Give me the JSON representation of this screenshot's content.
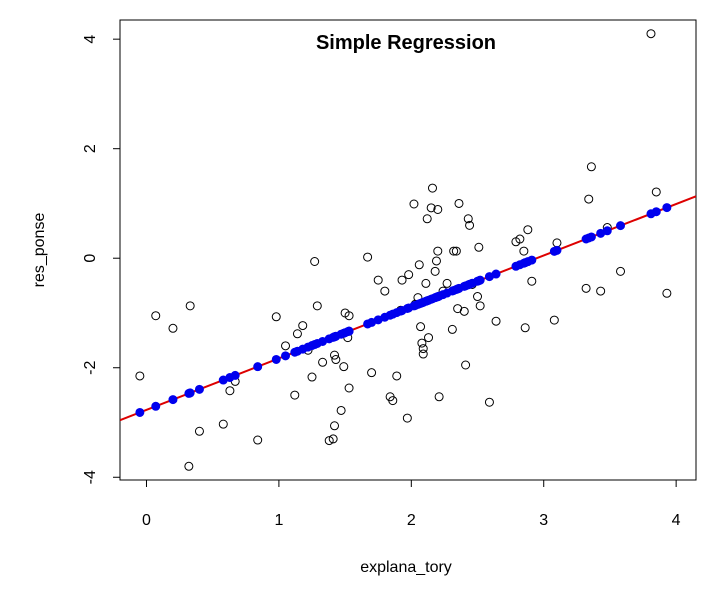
{
  "chart_data": {
    "type": "scatter",
    "title": "Simple Regression",
    "xlabel": "explana_tory",
    "ylabel": "res_ponse",
    "xlim": [
      -0.2,
      4.15
    ],
    "ylim": [
      -4.05,
      4.35
    ],
    "xticks": [
      "0",
      "1",
      "2",
      "3",
      "4"
    ],
    "yticks": [
      "-4",
      "-2",
      "0",
      "2",
      "4"
    ],
    "grid": false,
    "regression_line": {
      "intercept": -2.77,
      "slope": 0.94,
      "color": "#dd0000"
    },
    "observed_color": "#000000",
    "fitted_color": "#0000ee",
    "points": [
      [
        -0.05,
        -2.15
      ],
      [
        0.07,
        -1.05
      ],
      [
        0.2,
        -1.28
      ],
      [
        0.33,
        -0.87
      ],
      [
        0.4,
        -3.16
      ],
      [
        0.32,
        -3.8
      ],
      [
        0.58,
        -3.03
      ],
      [
        0.63,
        -2.42
      ],
      [
        0.67,
        -2.25
      ],
      [
        0.84,
        -3.32
      ],
      [
        0.98,
        -1.07
      ],
      [
        1.05,
        -1.6
      ],
      [
        1.12,
        -2.5
      ],
      [
        1.14,
        -1.38
      ],
      [
        1.18,
        -1.23
      ],
      [
        1.22,
        -1.68
      ],
      [
        1.25,
        -2.17
      ],
      [
        1.27,
        -0.06
      ],
      [
        1.29,
        -0.87
      ],
      [
        1.33,
        -1.9
      ],
      [
        1.38,
        -3.33
      ],
      [
        1.41,
        -3.3
      ],
      [
        1.42,
        -1.77
      ],
      [
        1.43,
        -1.85
      ],
      [
        1.42,
        -3.06
      ],
      [
        1.47,
        -2.78
      ],
      [
        1.49,
        -1.98
      ],
      [
        1.5,
        -1.0
      ],
      [
        1.53,
        -1.05
      ],
      [
        1.52,
        -1.45
      ],
      [
        1.53,
        -2.37
      ],
      [
        1.67,
        0.02
      ],
      [
        1.7,
        -2.09
      ],
      [
        1.75,
        -0.4
      ],
      [
        1.8,
        -0.6
      ],
      [
        1.84,
        -2.53
      ],
      [
        1.86,
        -2.6
      ],
      [
        1.89,
        -2.15
      ],
      [
        1.92,
        -0.95
      ],
      [
        1.93,
        -0.4
      ],
      [
        1.97,
        -2.92
      ],
      [
        1.98,
        -0.3
      ],
      [
        2.02,
        0.99
      ],
      [
        2.03,
        -0.84
      ],
      [
        2.05,
        -0.72
      ],
      [
        2.06,
        -0.12
      ],
      [
        2.07,
        -1.25
      ],
      [
        2.08,
        -1.55
      ],
      [
        2.09,
        -1.75
      ],
      [
        2.09,
        -1.65
      ],
      [
        2.11,
        -0.46
      ],
      [
        2.12,
        0.72
      ],
      [
        2.13,
        -1.45
      ],
      [
        2.15,
        0.92
      ],
      [
        2.16,
        1.28
      ],
      [
        2.18,
        -0.24
      ],
      [
        2.19,
        -0.05
      ],
      [
        2.2,
        0.13
      ],
      [
        2.2,
        0.89
      ],
      [
        2.21,
        -2.53
      ],
      [
        2.24,
        -0.6
      ],
      [
        2.27,
        -0.46
      ],
      [
        2.31,
        -1.3
      ],
      [
        2.32,
        0.13
      ],
      [
        2.34,
        0.13
      ],
      [
        2.35,
        -0.92
      ],
      [
        2.36,
        1.0
      ],
      [
        2.4,
        -0.97
      ],
      [
        2.41,
        -1.95
      ],
      [
        2.43,
        0.72
      ],
      [
        2.44,
        0.6
      ],
      [
        2.46,
        -0.48
      ],
      [
        2.5,
        -0.7
      ],
      [
        2.52,
        -0.87
      ],
      [
        2.51,
        0.2
      ],
      [
        2.59,
        -2.63
      ],
      [
        2.64,
        -1.15
      ],
      [
        2.79,
        0.3
      ],
      [
        2.82,
        0.35
      ],
      [
        2.85,
        0.13
      ],
      [
        2.86,
        -1.27
      ],
      [
        2.88,
        0.52
      ],
      [
        2.91,
        -0.42
      ],
      [
        3.08,
        -1.13
      ],
      [
        3.1,
        0.28
      ],
      [
        3.32,
        -0.55
      ],
      [
        3.34,
        1.08
      ],
      [
        3.36,
        1.67
      ],
      [
        3.43,
        -0.6
      ],
      [
        3.48,
        0.56
      ],
      [
        3.58,
        -0.24
      ],
      [
        3.81,
        4.1
      ],
      [
        3.85,
        1.21
      ],
      [
        3.93,
        -0.64
      ]
    ]
  }
}
